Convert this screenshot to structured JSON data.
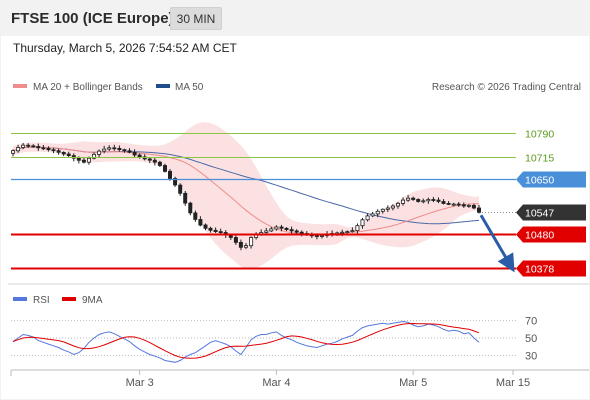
{
  "header": {
    "title": "FTSE 100 (ICE Europe)",
    "timeframe": "30 MIN"
  },
  "datetime": "Thursday, March 5, 2026 7:54:52 AM CET",
  "legend": {
    "ma20": "MA 20 + Bollinger Bands",
    "ma50": "MA 50",
    "copyright": "Research © 2026 Trading Central",
    "rsi": "RSI",
    "rsi_ma": "9MA"
  },
  "colors": {
    "candle": "#222222",
    "bollinger": "#fadcdc",
    "ma20": "#f08c8c",
    "ma50": "#4a69a8",
    "resistance": "#8dc63f",
    "pivot": "#4a90d9",
    "support": "#e00000",
    "current": "#333333",
    "arrow": "#2a5ca8",
    "rsi": "#5577dd",
    "rsi_ma": "#e00000"
  },
  "chart_data": [
    {
      "type": "candlestick",
      "series": [
        {
          "name": "FTSE 100 (ICE Europe)",
          "values": [
            10735,
            10745,
            10752,
            10750,
            10748,
            10744,
            10742,
            10738,
            10735,
            10730,
            10725,
            10720,
            10712,
            10706,
            10700,
            10712,
            10724,
            10734,
            10740,
            10744,
            10742,
            10738,
            10735,
            10730,
            10722,
            10716,
            10710,
            10706,
            10700,
            10690,
            10672,
            10650,
            10630,
            10605,
            10575,
            10545,
            10525,
            10508,
            10498,
            10492,
            10488,
            10485,
            10478,
            10470,
            10455,
            10440,
            10445,
            10470,
            10480,
            10485,
            10490,
            10496,
            10502,
            10498,
            10494,
            10490,
            10486,
            10482,
            10478,
            10476,
            10474,
            10476,
            10480,
            10482,
            10484,
            10486,
            10488,
            10491,
            10506,
            10524,
            10536,
            10542,
            10550,
            10556,
            10560,
            10566,
            10574,
            10584,
            10590,
            10586,
            10580,
            10582,
            10586,
            10584,
            10580,
            10574,
            10572,
            10572,
            10570,
            10566,
            10568,
            10560,
            10547
          ]
        },
        {
          "name": "MA 20"
        },
        {
          "name": "MA 50"
        },
        {
          "name": "Bollinger Bands"
        }
      ],
      "levels": [
        {
          "label": "10790",
          "value": 10790,
          "kind": "resistance"
        },
        {
          "label": "10715",
          "value": 10715,
          "kind": "resistance"
        },
        {
          "label": "10650",
          "value": 10650,
          "kind": "pivot"
        },
        {
          "label": "10547",
          "value": 10547,
          "kind": "current"
        },
        {
          "label": "10480",
          "value": 10480,
          "kind": "support"
        },
        {
          "label": "10378",
          "value": 10378,
          "kind": "support"
        }
      ],
      "forecast": {
        "from": 10547,
        "to": 10378
      },
      "x_ticks": [
        "Mar 3",
        "Mar 4",
        "Mar 5",
        "Mar 15"
      ],
      "legend_placement": "top-left",
      "grid": false
    },
    {
      "type": "line",
      "series": [
        {
          "name": "RSI",
          "values": [
            46,
            50,
            54,
            53,
            51,
            47,
            45,
            43,
            41,
            39,
            36,
            34,
            31,
            33,
            38,
            45,
            50,
            54,
            56,
            57,
            55,
            52,
            49,
            46,
            41,
            37,
            34,
            31,
            29,
            27,
            24,
            23,
            22,
            24,
            28,
            31,
            33,
            37,
            41,
            45,
            47,
            45,
            43,
            40,
            35,
            31,
            39,
            48,
            52,
            54,
            54,
            56,
            57,
            53,
            50,
            48,
            45,
            43,
            41,
            40,
            39,
            41,
            43,
            44,
            46,
            49,
            51,
            53,
            58,
            62,
            64,
            65,
            66,
            67,
            66,
            67,
            68,
            69,
            68,
            65,
            63,
            64,
            66,
            65,
            63,
            60,
            58,
            59,
            58,
            55,
            56,
            50,
            45
          ]
        },
        {
          "name": "9MA"
        }
      ],
      "y_ticks": [
        70,
        50,
        30
      ],
      "legend_placement": "top-left"
    }
  ]
}
